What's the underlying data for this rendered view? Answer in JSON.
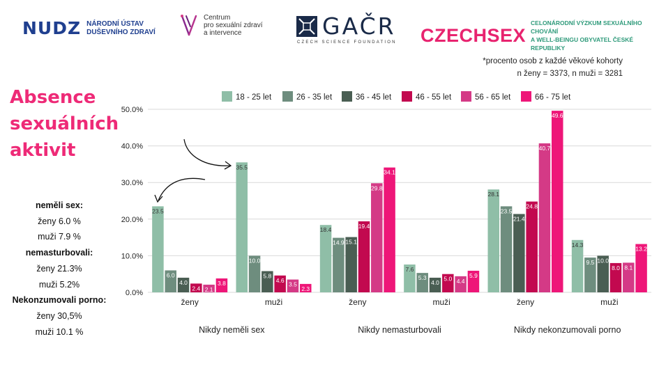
{
  "header": {
    "nudz": {
      "mark": "NUDZ",
      "line1": "NÁRODNÍ ÚSTAV",
      "line2": "DUŠEVNÍHO ZDRAVÍ"
    },
    "centrum": {
      "line1": "Centrum",
      "line2": "pro sexuální zdraví",
      "line3": "a intervence"
    },
    "gacr": {
      "word": "GAČR",
      "sub": "CZECH SCIENCE FOUNDATION"
    },
    "czechsex": {
      "word": "CZECHSEX",
      "line1": "CELONÁRODNÍ VÝZKUM SEXUÁLNÍHO CHOVÁNÍ",
      "line2": "A WELL-BEINGU OBYVATEL ČESKÉ REPUBLIKY"
    }
  },
  "note": {
    "line1": "*procento osob z každé věkové kohorty",
    "line2": "n ženy = 3373, n muži = 3281"
  },
  "title": {
    "line1": "Absence",
    "line2": "sexuálních",
    "line3": "aktivit"
  },
  "stats": [
    {
      "text": "neměli sex:",
      "bold": true
    },
    {
      "text": "ženy 6.0 %",
      "bold": false
    },
    {
      "text": "muži 7.9 %",
      "bold": false
    },
    {
      "text": "nemasturbovali:",
      "bold": true
    },
    {
      "text": "ženy 21.3%",
      "bold": false
    },
    {
      "text": "muži 5.2%",
      "bold": false
    },
    {
      "text": "Nekonzumovali porno:",
      "bold": true
    },
    {
      "text": "ženy 30,5%",
      "bold": false
    },
    {
      "text": "muži 10.1 %",
      "bold": false
    }
  ],
  "colors": {
    "series": [
      "#8fbea7",
      "#6e8d7e",
      "#4a5e53",
      "#c2094f",
      "#d43a86",
      "#ee1678"
    ],
    "grid": "#d9d9d9",
    "title": "#ee2a77"
  },
  "chart_data": {
    "type": "bar",
    "yticks": [
      "0.0%",
      "10.0%",
      "20.0%",
      "30.0%",
      "40.0%",
      "50.0%"
    ],
    "ylim": [
      0,
      50
    ],
    "grid": true,
    "legend_position": "top",
    "categories": [
      "ženy",
      "muži",
      "ženy",
      "muži",
      "ženy",
      "muži"
    ],
    "groups": [
      "Nikdy neměli sex",
      "Nikdy nemasturbovali",
      "Nikdy nekonzumovali porno"
    ],
    "series": [
      {
        "name": "18 - 25 let",
        "values": [
          23.5,
          35.5,
          18.4,
          7.6,
          28.1,
          14.3
        ]
      },
      {
        "name": "26 - 35 let",
        "values": [
          6.0,
          10.0,
          14.9,
          5.3,
          23.5,
          9.5
        ]
      },
      {
        "name": "36 - 45 let",
        "values": [
          4.0,
          5.8,
          15.1,
          4.0,
          21.4,
          10.0
        ]
      },
      {
        "name": "46 - 55 let",
        "values": [
          2.4,
          4.6,
          19.4,
          5.0,
          24.8,
          8.0
        ]
      },
      {
        "name": "56 - 65 let",
        "values": [
          2.1,
          3.5,
          29.8,
          4.4,
          40.7,
          8.1
        ]
      },
      {
        "name": "66 - 75 let",
        "values": [
          3.8,
          2.3,
          34.1,
          5.9,
          49.6,
          13.2
        ]
      }
    ]
  }
}
